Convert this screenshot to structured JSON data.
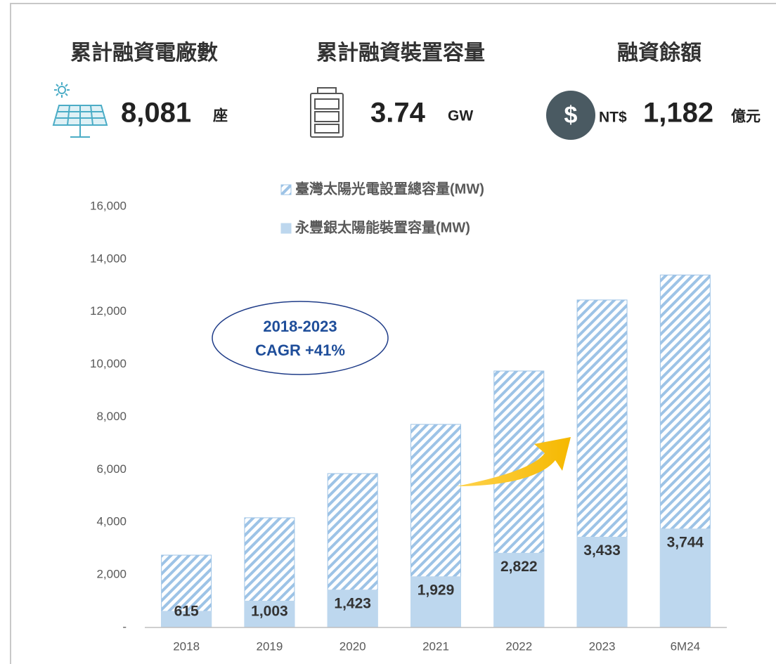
{
  "kpis": [
    {
      "title": "累計融資電廠數",
      "value": "8,081",
      "unit": "座"
    },
    {
      "title": "累計融資裝置容量",
      "value": "3.74",
      "unit": "GW"
    },
    {
      "title": "融資餘額",
      "prefix": "NT$",
      "value": "1,182",
      "unit": "億元"
    }
  ],
  "chart_data": {
    "type": "bar",
    "barmode": "overlay",
    "categories": [
      "2018",
      "2019",
      "2020",
      "2021",
      "2022",
      "2023",
      "6M24"
    ],
    "series": [
      {
        "name": "臺灣太陽光電設置總容量(MW)",
        "color": "#9dc3e6",
        "hatch": true,
        "values": [
          2750,
          4170,
          5850,
          7720,
          9750,
          12450,
          13400
        ]
      },
      {
        "name": "永豐銀太陽能裝置容量(MW)",
        "color": "#bdd7ee",
        "hatch": false,
        "values": [
          615,
          1003,
          1423,
          1929,
          2822,
          3433,
          3744
        ],
        "value_labels": [
          "615",
          "1,003",
          "1,423",
          "1,929",
          "2,822",
          "3,433",
          "3,744"
        ]
      }
    ],
    "ylim": [
      0,
      16000
    ],
    "yticks": [
      {
        "value": 0,
        "label": "-"
      },
      {
        "value": 2000,
        "label": "2,000"
      },
      {
        "value": 4000,
        "label": "4,000"
      },
      {
        "value": 6000,
        "label": "6,000"
      },
      {
        "value": 8000,
        "label": "8,000"
      },
      {
        "value": 10000,
        "label": "10,000"
      },
      {
        "value": 12000,
        "label": "12,000"
      },
      {
        "value": 14000,
        "label": "14,000"
      },
      {
        "value": 16000,
        "label": "16,000"
      }
    ],
    "grid": false,
    "legend": "top-center",
    "annotations": [
      "2018-2023",
      "CAGR +41%"
    ]
  }
}
